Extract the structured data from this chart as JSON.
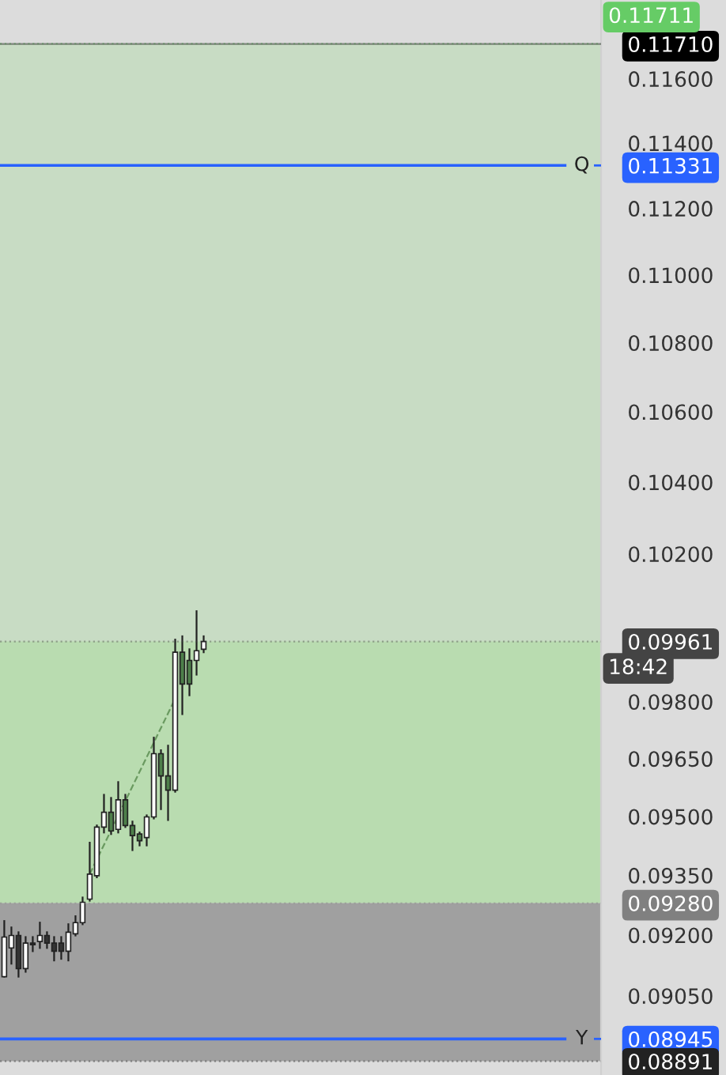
{
  "chart_data": {
    "type": "candlestick",
    "categories": [
      null,
      null,
      null,
      null,
      null,
      null,
      null,
      null,
      null,
      null,
      null,
      null,
      null,
      null,
      null,
      null,
      null,
      null,
      null,
      null,
      null,
      null,
      null,
      null,
      null,
      null,
      null,
      null,
      null,
      null,
      null,
      null,
      null,
      null,
      null,
      null,
      null,
      null,
      null,
      null,
      null,
      null,
      null,
      null,
      null,
      null,
      null,
      null,
      null,
      null,
      null,
      null,
      null,
      null,
      null,
      null,
      null,
      null,
      null,
      null,
      null,
      null,
      null,
      null,
      null,
      null,
      null,
      null,
      null,
      null,
      null,
      null,
      null,
      null,
      null,
      null,
      null,
      null,
      null,
      null,
      null,
      null,
      null,
      null
    ],
    "ohlc": [
      [
        0.09097,
        0.09235,
        0.09097,
        0.09195
      ],
      [
        0.09168,
        0.09219,
        0.09129,
        0.09199
      ],
      [
        0.09199,
        0.09207,
        0.09097,
        0.09117
      ],
      [
        0.09117,
        0.09195,
        0.09109,
        0.0918
      ],
      [
        0.0918,
        0.09195,
        0.0916,
        0.09176
      ],
      [
        0.09184,
        0.09231,
        0.09168,
        0.09199
      ],
      [
        0.09199,
        0.09207,
        0.09168,
        0.0918
      ],
      [
        0.0918,
        0.09195,
        0.09137,
        0.0916
      ],
      [
        0.0918,
        0.09195,
        0.09141,
        0.0916
      ],
      [
        0.0916,
        0.09227,
        0.09137,
        0.09207
      ],
      [
        0.09203,
        0.09247,
        0.09199,
        0.09231
      ],
      [
        0.09231,
        0.09294,
        0.09227,
        0.09282
      ],
      [
        0.0929,
        0.09433,
        0.09286,
        0.09353
      ],
      [
        0.09349,
        0.09477,
        0.09345,
        0.09473
      ],
      [
        0.09473,
        0.09556,
        0.09459,
        0.09511
      ],
      [
        0.09511,
        0.09548,
        0.09455,
        0.09463
      ],
      [
        0.09467,
        0.09589,
        0.09459,
        0.09543
      ],
      [
        0.09543,
        0.09556,
        0.09473,
        0.09477
      ],
      [
        0.09477,
        0.09487,
        0.09414,
        0.09451
      ],
      [
        0.09455,
        0.09459,
        0.09426,
        0.09438
      ],
      [
        0.09446,
        0.09503,
        0.09426,
        0.09499
      ],
      [
        0.09499,
        0.09705,
        0.09495,
        0.09663
      ],
      [
        0.09663,
        0.09672,
        0.09519,
        0.09605
      ],
      [
        0.09605,
        0.09684,
        0.09491,
        0.09568
      ],
      [
        0.09568,
        0.09966,
        0.09564,
        0.09932
      ],
      [
        0.09932,
        0.09975,
        0.09767,
        0.09847
      ],
      [
        0.0991,
        0.0994,
        0.09817,
        0.09847
      ],
      [
        0.0991,
        0.10043,
        0.09872,
        0.09936
      ],
      [
        0.0994,
        0.09975,
        0.09932,
        0.09961
      ],
      null,
      null,
      null,
      null,
      null,
      null,
      null,
      null,
      null,
      null,
      null,
      null,
      null,
      null,
      null,
      null,
      null,
      null,
      null,
      null,
      null,
      null,
      null,
      null,
      null,
      null,
      null,
      null,
      null,
      null,
      null,
      null,
      null,
      null,
      null,
      null,
      null,
      null,
      null,
      null,
      null,
      null,
      null,
      null,
      null,
      null,
      null,
      null,
      null,
      null,
      null,
      null,
      null,
      null,
      null
    ],
    "colors": [
      "#ffffff",
      "#ffffff",
      "#333333",
      "#ffffff",
      "#333333",
      "#ffffff",
      "#333333",
      "#333333",
      "#333333",
      "#ffffff",
      "#ffffff",
      "#ffffff",
      "#ffffff",
      "#ffffff",
      "#ffffff",
      "#4d7f4a",
      "#ffffff",
      "#4d7f4a",
      "#4d7f4a",
      "#4d7f4a",
      "#ffffff",
      "#ffffff",
      "#4d7f4a",
      "#4d7f4a",
      "#ffffff",
      "#4d7f4a",
      "#4d7f4a",
      "#ffffff",
      "#ffffff",
      null,
      null,
      null,
      null,
      null,
      null,
      null,
      null,
      null,
      null,
      null,
      null,
      null,
      null,
      null,
      null,
      null,
      null,
      null,
      null,
      null,
      null,
      null,
      null,
      null,
      null,
      null,
      null,
      null,
      null,
      null,
      null,
      null,
      null,
      null,
      null,
      null,
      null,
      null,
      null,
      null,
      null,
      null,
      null,
      null,
      null,
      null,
      null,
      null,
      null,
      null,
      null,
      null,
      null,
      null
    ],
    "series": [
      {
        "type": "line",
        "values": [
          null,
          null,
          null,
          null,
          null,
          null,
          null,
          null,
          null,
          null,
          null,
          null,
          0.09353,
          null,
          null,
          null,
          null,
          null,
          null,
          null,
          null,
          null,
          null,
          null,
          0.09808,
          null,
          null,
          null,
          null,
          null,
          null,
          null,
          null,
          null,
          null,
          null,
          null,
          null,
          null,
          null,
          null,
          null,
          null,
          null,
          null,
          null,
          null,
          null,
          null,
          null,
          null,
          null,
          null,
          null,
          null,
          null,
          null,
          null,
          null,
          null,
          null,
          null,
          null,
          null,
          null,
          null,
          null,
          null,
          null,
          null,
          null,
          null,
          null,
          null,
          null,
          null,
          null,
          null,
          null,
          null,
          null,
          null,
          null,
          null
        ],
        "color": "#6a9a60",
        "line_style": "dashed"
      }
    ],
    "log": "y",
    "ylim": [
      0.08858,
      0.1185
    ],
    "yticks": [
      {
        "value": 0.1171,
        "label": "0.11710"
      },
      {
        "value": 0.11331,
        "label": "0.11331"
      },
      {
        "value": 0.09961,
        "label": "0.09961"
      },
      {
        "value": 0.0928,
        "label": "0.09280"
      },
      {
        "value": 0.08945,
        "label": "0.08945"
      },
      {
        "value": 0.08891,
        "label": "0.08891"
      },
      {
        "value": 0.116,
        "label": "0.11600"
      },
      {
        "value": 0.114,
        "label": "0.11400"
      },
      {
        "value": 0.112,
        "label": "0.11200"
      },
      {
        "value": 0.11,
        "label": "0.11000"
      },
      {
        "value": 0.108,
        "label": "0.10800"
      },
      {
        "value": 0.106,
        "label": "0.10600"
      },
      {
        "value": 0.104,
        "label": "0.10400"
      },
      {
        "value": 0.102,
        "label": "0.10200"
      },
      {
        "value": 0.098,
        "label": "0.09800"
      },
      {
        "value": 0.0965,
        "label": "0.09650"
      },
      {
        "value": 0.095,
        "label": "0.09500"
      },
      {
        "value": 0.0935,
        "label": "0.09350"
      },
      {
        "value": 0.092,
        "label": "0.09200"
      },
      {
        "value": 0.0905,
        "label": "0.09050"
      }
    ],
    "tick_labels": "y",
    "grid": false,
    "bands": [
      {
        "axis": "y",
        "from": 0.0928,
        "to": 0.1171,
        "color": "#c8dcc4"
      },
      {
        "axis": "y",
        "from": 0.0928,
        "to": 0.09961,
        "color": "#b9dcb0"
      },
      {
        "axis": "y",
        "from": 0.08891,
        "to": 0.0928,
        "color": "#a0a0a0"
      }
    ],
    "ref_lines": [
      {
        "axis": "y",
        "value": 0.11711,
        "label": "0.11711",
        "color": "#66cc66",
        "line_style": "dotted"
      },
      {
        "axis": "y",
        "value": 0.1171,
        "color": "#000000",
        "line_style": "solid"
      },
      {
        "axis": "y",
        "value": 0.11331,
        "label": "Q",
        "color": "#2962ff",
        "line_style": "solid"
      },
      {
        "axis": "y",
        "value": 0.09961,
        "color": "#444444",
        "line_style": "dotted"
      },
      {
        "axis": "y",
        "value": 0.0928,
        "color": "#808080",
        "line_style": "dotted"
      },
      {
        "axis": "y",
        "value": 0.08945,
        "label": "Y",
        "color": "#2962ff",
        "line_style": "solid"
      },
      {
        "axis": "y",
        "value": 0.08891,
        "color": "#222222",
        "line_style": "dotted"
      }
    ],
    "annotations": [
      "18:42"
    ]
  }
}
